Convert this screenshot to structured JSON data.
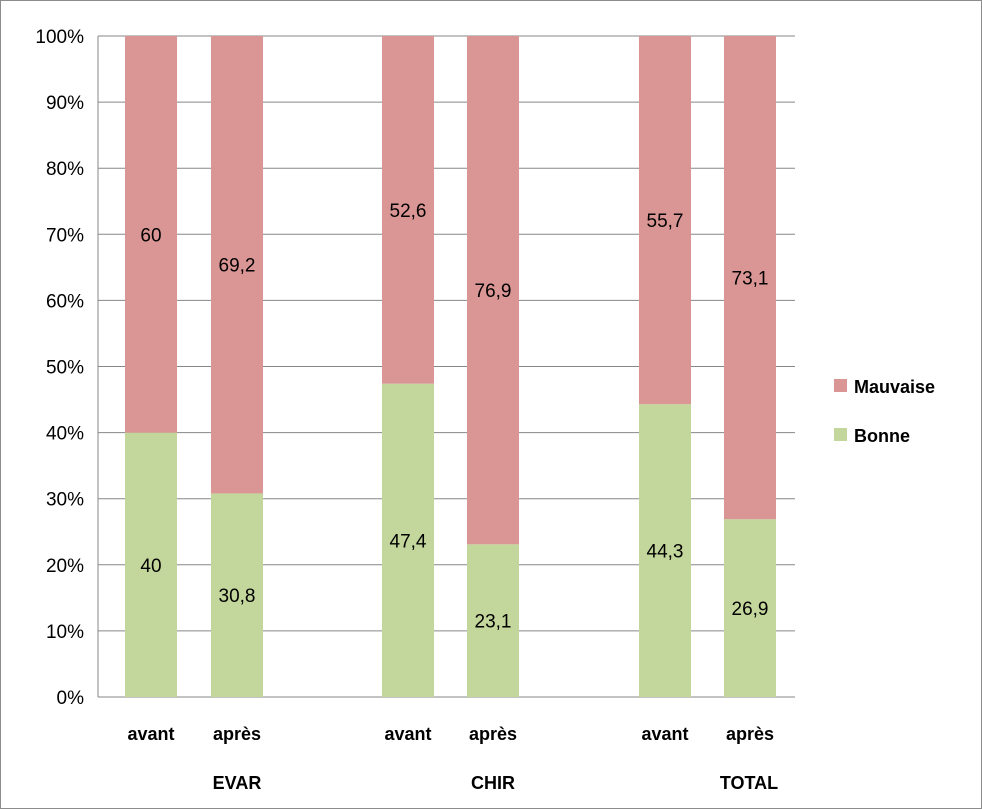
{
  "chart_data": {
    "type": "bar",
    "stacked": "percent",
    "groups": [
      "EVAR",
      "CHIR",
      "TOTAL"
    ],
    "categories": [
      "avant",
      "après",
      "avant",
      "après",
      "avant",
      "après"
    ],
    "series": [
      {
        "name": "Bonne",
        "color": "#c3d69b",
        "values": [
          40,
          30.8,
          47.4,
          23.1,
          44.3,
          26.9
        ],
        "labels": [
          "40",
          "30,8",
          "47,4",
          "23,1",
          "44,3",
          "26,9"
        ]
      },
      {
        "name": "Mauvaise",
        "color": "#d99694",
        "values": [
          60,
          69.2,
          52.6,
          76.9,
          55.7,
          73.1
        ],
        "labels": [
          "60",
          "69,2",
          "52,6",
          "76,9",
          "55,7",
          "73,1"
        ]
      }
    ],
    "yticks": [
      "0%",
      "10%",
      "20%",
      "30%",
      "40%",
      "50%",
      "60%",
      "70%",
      "80%",
      "90%",
      "100%"
    ],
    "ylim": [
      0,
      100
    ],
    "grid": true,
    "legend": "right",
    "title": "",
    "xlabel": "",
    "ylabel": ""
  }
}
